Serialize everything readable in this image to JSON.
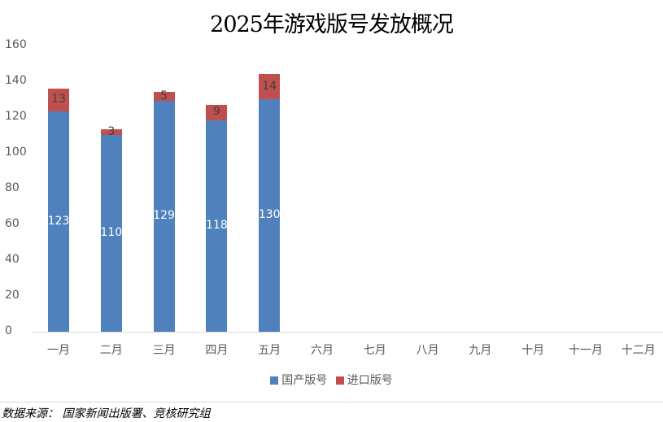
{
  "chart_data": {
    "type": "bar",
    "stacked": true,
    "title": "2025年游戏版号发放概况",
    "categories": [
      "一月",
      "二月",
      "三月",
      "四月",
      "五月",
      "六月",
      "七月",
      "八月",
      "九月",
      "十月",
      "十一月",
      "十二月"
    ],
    "series": [
      {
        "name": "国产版号",
        "color": "#4f81bd",
        "values": [
          123,
          110,
          129,
          118,
          130,
          null,
          null,
          null,
          null,
          null,
          null,
          null
        ]
      },
      {
        "name": "进口版号",
        "color": "#c0504d",
        "values": [
          13,
          3,
          5,
          9,
          14,
          null,
          null,
          null,
          null,
          null,
          null,
          null
        ]
      }
    ],
    "yticks": [
      0,
      20,
      40,
      60,
      80,
      100,
      120,
      140,
      160
    ],
    "ylim": [
      0,
      160
    ],
    "xlabel": "",
    "ylabel": "",
    "grid": false,
    "legend_position": "bottom"
  },
  "labels": {
    "title": "2025年游戏版号发放概况",
    "source": "数据来源： 国家新闻出版署、竞核研究组",
    "legend": [
      "国产版号",
      "进口版号"
    ]
  }
}
